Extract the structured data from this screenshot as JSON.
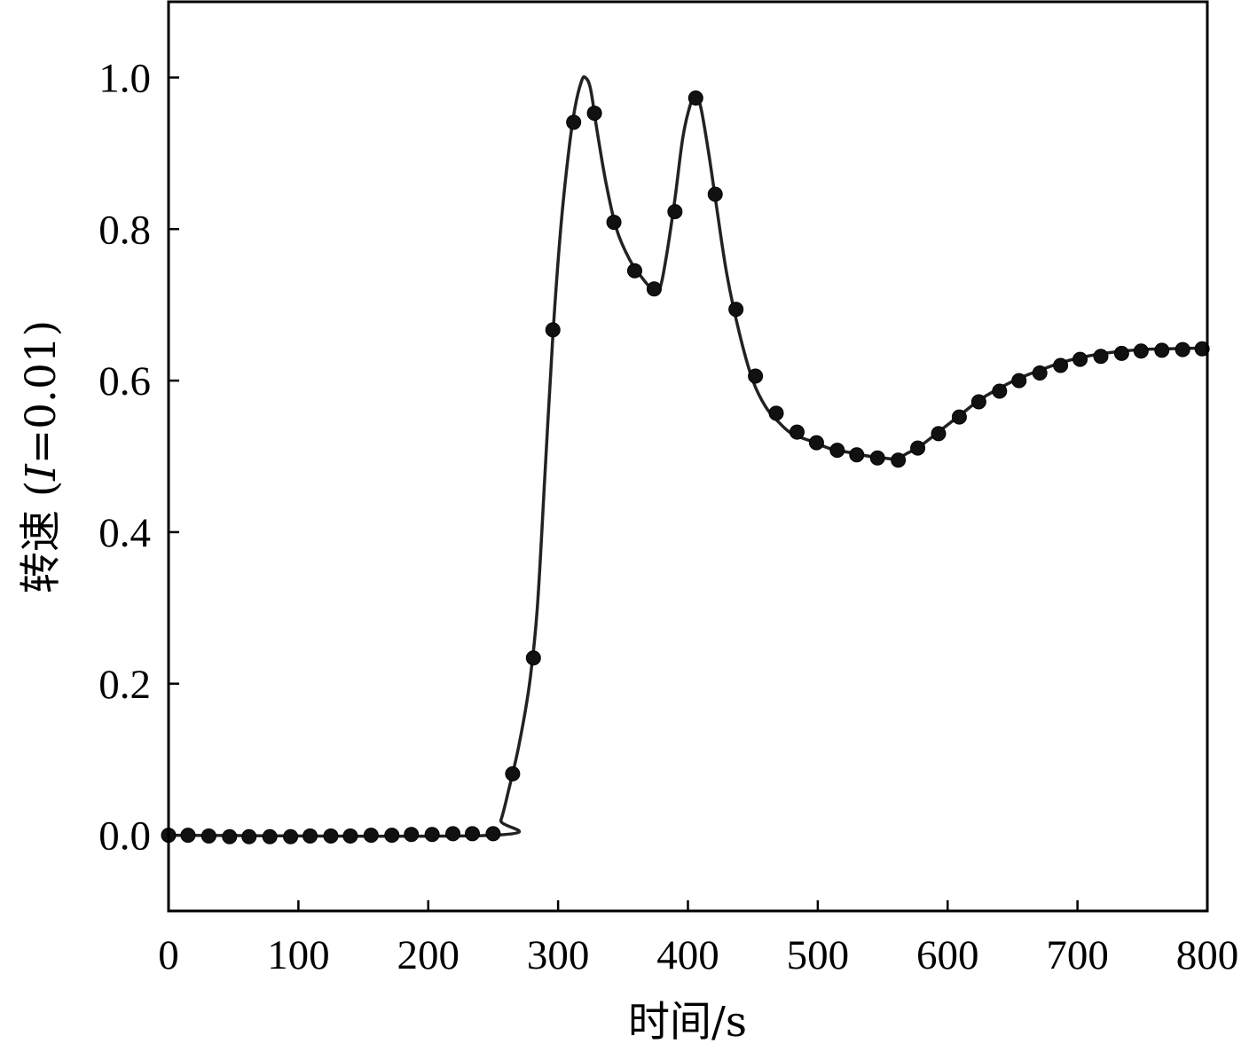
{
  "chart_data": {
    "type": "line",
    "xlabel": "时间/s",
    "ylabel_main": "转速 (",
    "ylabel_italic": "I",
    "ylabel_tail": "=0.01)",
    "xlim": [
      0,
      800
    ],
    "ylim": [
      -0.1,
      1.1
    ],
    "xticks": [
      0,
      100,
      200,
      300,
      400,
      500,
      600,
      700,
      800
    ],
    "xtick_labels": [
      "0",
      "100",
      "200",
      "300",
      "400",
      "500",
      "600",
      "700",
      "800"
    ],
    "yticks": [
      0.0,
      0.2,
      0.4,
      0.6,
      0.8,
      1.0
    ],
    "ytick_labels": [
      "0.0",
      "0.2",
      "0.4",
      "0.6",
      "0.8",
      "1.0"
    ],
    "grid": false,
    "line_color": "#222222",
    "marker_color": "#111111",
    "series": [
      {
        "kind": "line",
        "points": [
          [
            0,
            0.0
          ],
          [
            250,
            0.0
          ],
          [
            256,
            0.02
          ],
          [
            262,
            0.06
          ],
          [
            270,
            0.12
          ],
          [
            278,
            0.2
          ],
          [
            284,
            0.3
          ],
          [
            290,
            0.48
          ],
          [
            296,
            0.66
          ],
          [
            302,
            0.8
          ],
          [
            308,
            0.9
          ],
          [
            313,
            0.96
          ],
          [
            318,
            0.995
          ],
          [
            321,
            1.0
          ],
          [
            325,
            0.985
          ],
          [
            330,
            0.93
          ],
          [
            337,
            0.86
          ],
          [
            345,
            0.8
          ],
          [
            355,
            0.76
          ],
          [
            365,
            0.735
          ],
          [
            373,
            0.72
          ],
          [
            378,
            0.72
          ],
          [
            383,
            0.76
          ],
          [
            390,
            0.84
          ],
          [
            396,
            0.92
          ],
          [
            402,
            0.965
          ],
          [
            406,
            0.975
          ],
          [
            410,
            0.96
          ],
          [
            416,
            0.9
          ],
          [
            422,
            0.83
          ],
          [
            430,
            0.74
          ],
          [
            440,
            0.66
          ],
          [
            450,
            0.6
          ],
          [
            460,
            0.565
          ],
          [
            470,
            0.545
          ],
          [
            480,
            0.53
          ],
          [
            495,
            0.52
          ],
          [
            510,
            0.51
          ],
          [
            525,
            0.505
          ],
          [
            540,
            0.5
          ],
          [
            550,
            0.498
          ],
          [
            560,
            0.497
          ],
          [
            570,
            0.505
          ],
          [
            580,
            0.515
          ],
          [
            595,
            0.535
          ],
          [
            610,
            0.555
          ],
          [
            625,
            0.575
          ],
          [
            640,
            0.59
          ],
          [
            655,
            0.603
          ],
          [
            670,
            0.613
          ],
          [
            690,
            0.625
          ],
          [
            710,
            0.633
          ],
          [
            730,
            0.638
          ],
          [
            750,
            0.641
          ],
          [
            770,
            0.642
          ],
          [
            800,
            0.643
          ]
        ]
      },
      {
        "kind": "markers",
        "points": [
          [
            0,
            0.0
          ],
          [
            15,
            0.0
          ],
          [
            31,
            -0.001
          ],
          [
            47,
            -0.002
          ],
          [
            62,
            -0.002
          ],
          [
            78,
            -0.002
          ],
          [
            94,
            -0.002
          ],
          [
            109,
            -0.001
          ],
          [
            125,
            -0.001
          ],
          [
            140,
            -0.001
          ],
          [
            156,
            0.0
          ],
          [
            172,
            0.0
          ],
          [
            187,
            0.001
          ],
          [
            203,
            0.001
          ],
          [
            219,
            0.002
          ],
          [
            234,
            0.002
          ],
          [
            250,
            0.002
          ],
          [
            265,
            0.081
          ],
          [
            281,
            0.234
          ],
          [
            296,
            0.667
          ],
          [
            312,
            0.941
          ],
          [
            328,
            0.953
          ],
          [
            343,
            0.809
          ],
          [
            359,
            0.745
          ],
          [
            374,
            0.721
          ],
          [
            390,
            0.823
          ],
          [
            406,
            0.973
          ],
          [
            421,
            0.846
          ],
          [
            437,
            0.694
          ],
          [
            452,
            0.606
          ],
          [
            468,
            0.557
          ],
          [
            484,
            0.532
          ],
          [
            499,
            0.518
          ],
          [
            515,
            0.508
          ],
          [
            530,
            0.502
          ],
          [
            546,
            0.498
          ],
          [
            562,
            0.495
          ],
          [
            577,
            0.511
          ],
          [
            593,
            0.53
          ],
          [
            609,
            0.552
          ],
          [
            624,
            0.572
          ],
          [
            640,
            0.586
          ],
          [
            655,
            0.6
          ],
          [
            671,
            0.61
          ],
          [
            687,
            0.62
          ],
          [
            702,
            0.628
          ],
          [
            718,
            0.632
          ],
          [
            734,
            0.636
          ],
          [
            749,
            0.639
          ],
          [
            765,
            0.64
          ],
          [
            781,
            0.641
          ],
          [
            796,
            0.642
          ]
        ]
      }
    ]
  }
}
